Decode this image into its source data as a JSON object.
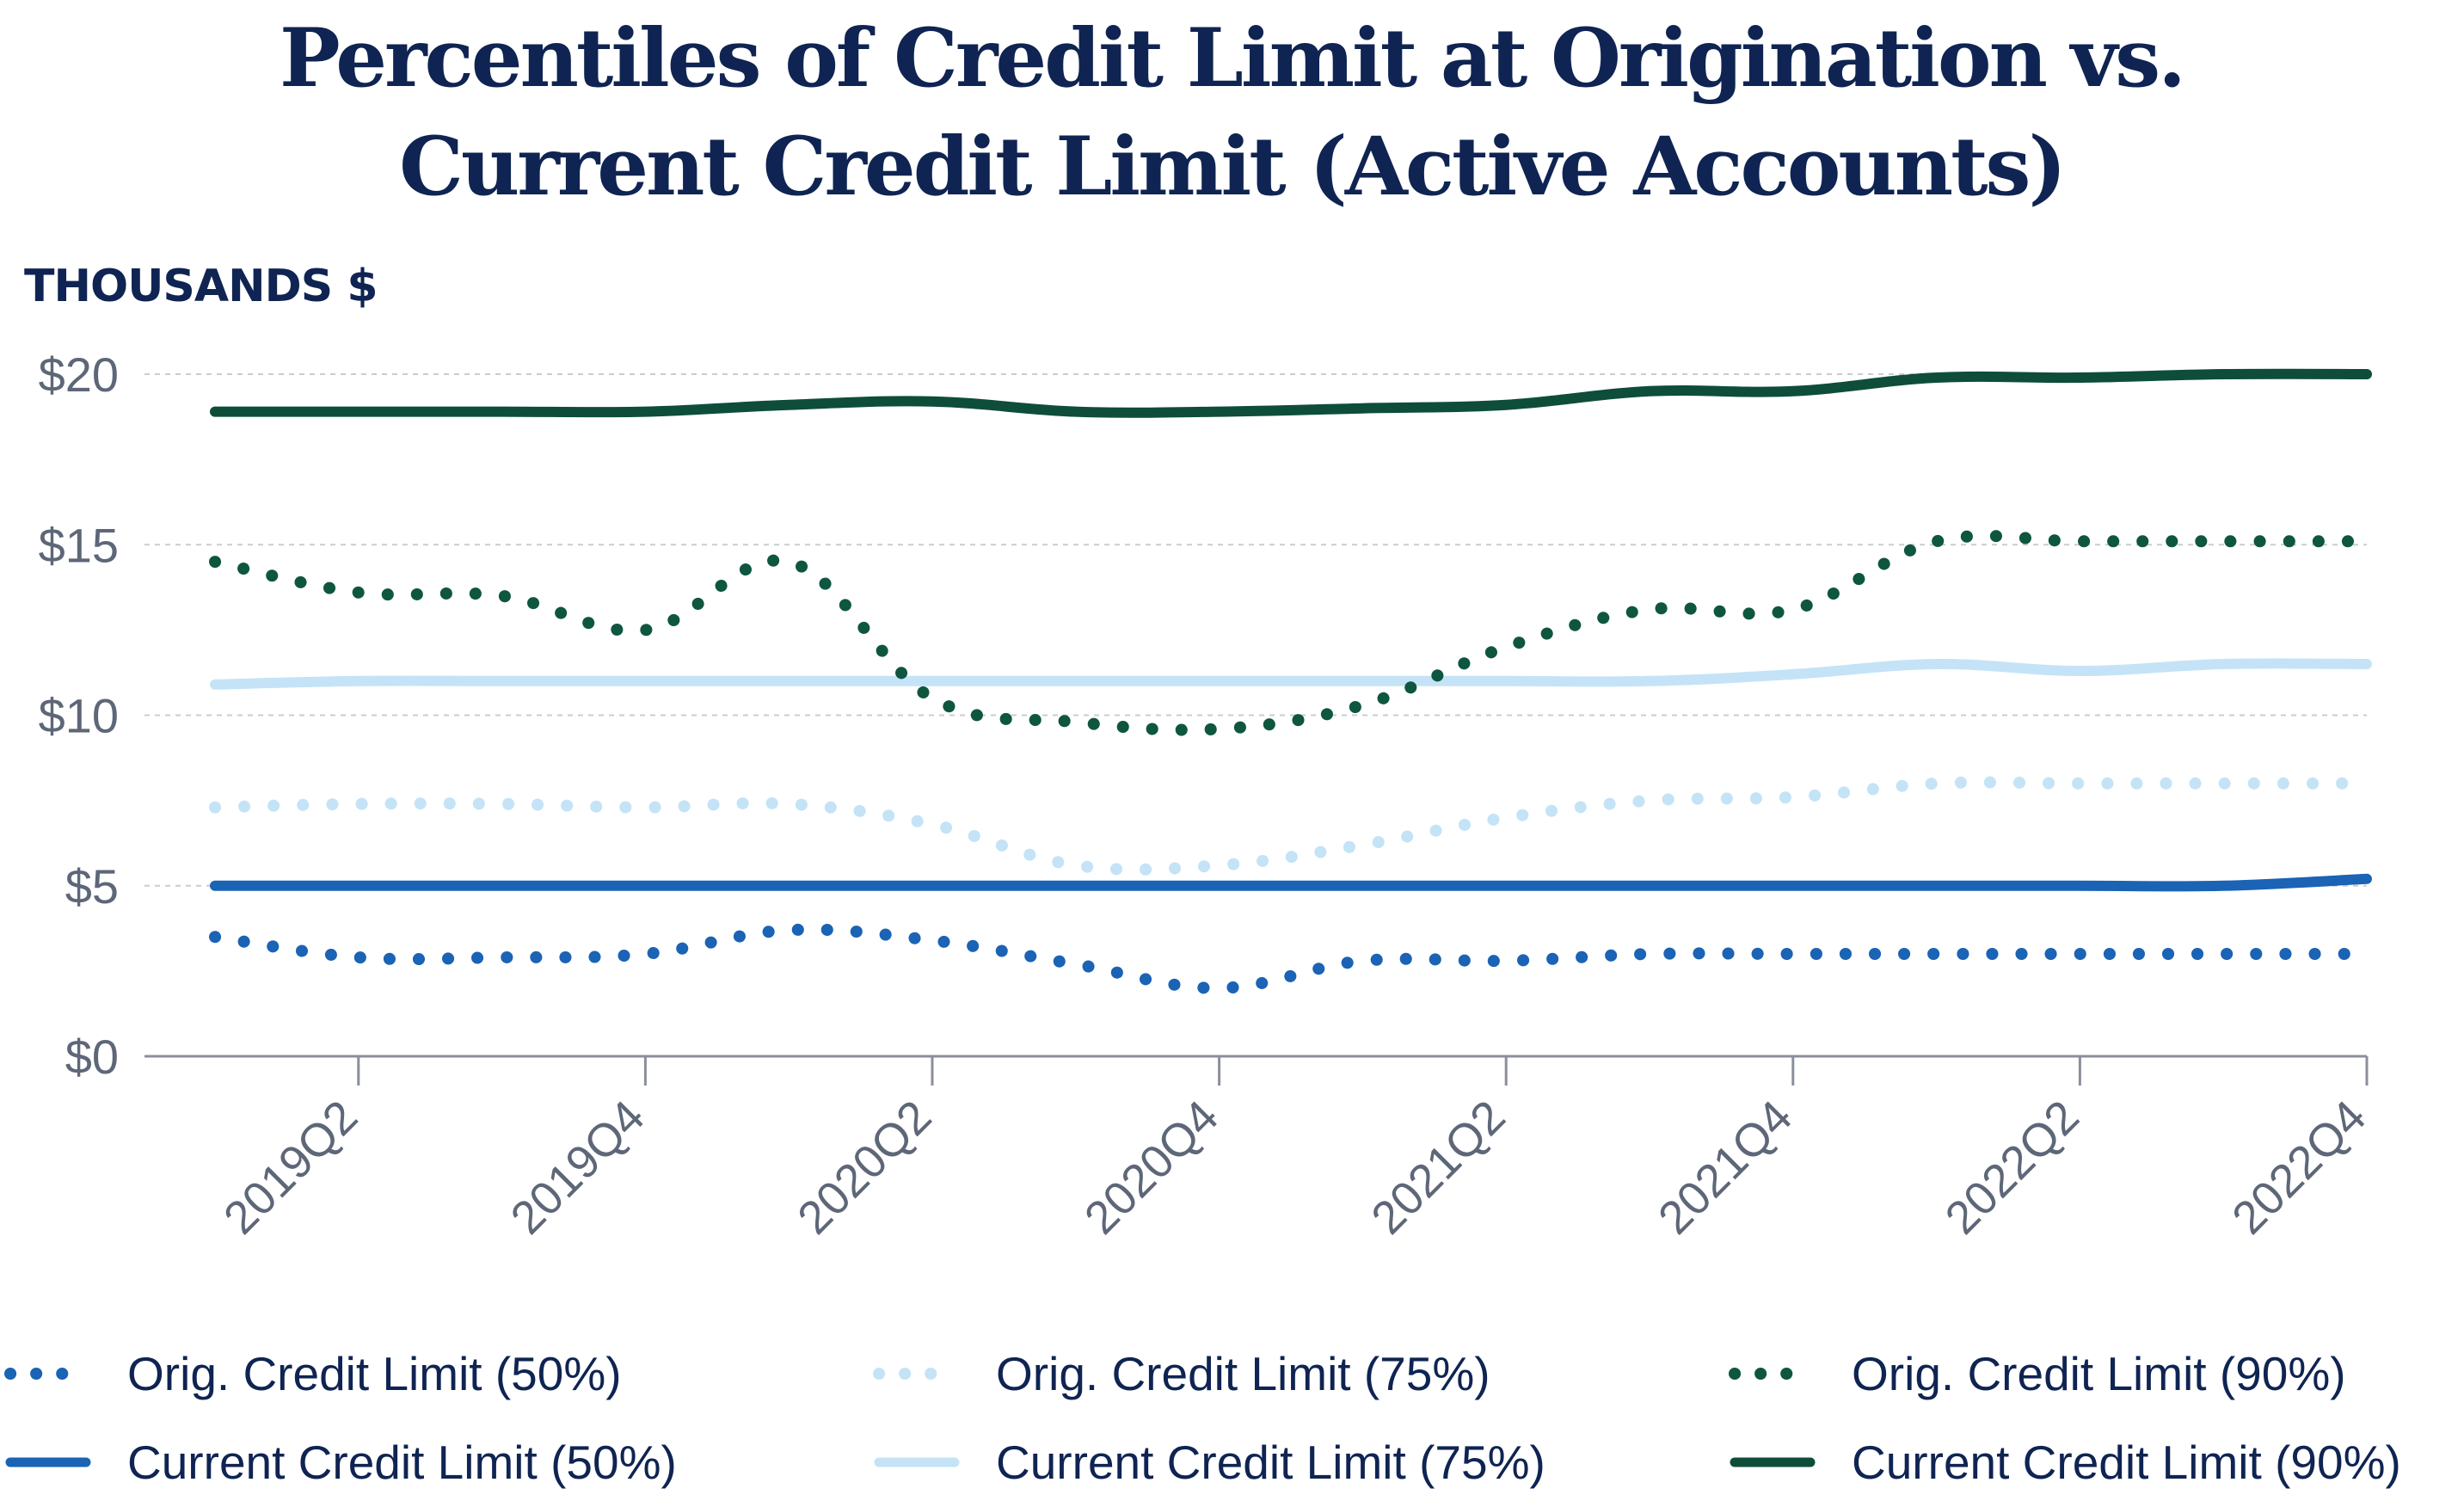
{
  "title_line1": "Percentiles of Credit Limit at Origination vs.",
  "title_line2": "Current Credit Limit (Active Accounts)",
  "unit_label": "THOUSANDS $",
  "chart_data": {
    "type": "line",
    "title": "Percentiles of Credit Limit at Origination vs. Current Credit Limit (Active Accounts)",
    "ylabel": "THOUSANDS $",
    "xlabel": "",
    "ylim": [
      0,
      20
    ],
    "yticks": [
      0,
      5,
      10,
      15,
      20
    ],
    "ytick_labels": [
      "$0",
      "$5",
      "$10",
      "$15",
      "$20"
    ],
    "grid": "horizontal dashed",
    "legend_position": "bottom",
    "x": [
      "2019Q1",
      "2019Q2",
      "2019Q3",
      "2019Q4",
      "2020Q1",
      "2020Q2",
      "2020Q3",
      "2020Q4",
      "2021Q1",
      "2021Q2",
      "2021Q3",
      "2021Q4",
      "2022Q1",
      "2022Q2",
      "2022Q3",
      "2022Q4"
    ],
    "xtick_labels": [
      "2019Q2",
      "2019Q4",
      "2020Q2",
      "2020Q4",
      "2021Q2",
      "2021Q4",
      "2022Q2",
      "2022Q4"
    ],
    "series": [
      {
        "name": "Orig. Credit Limit (50%)",
        "style": "dotted",
        "color": "#1a63b5",
        "values": [
          3.5,
          2.9,
          2.9,
          3.0,
          3.7,
          3.4,
          2.7,
          2.0,
          2.8,
          2.8,
          3.0,
          3.0,
          3.0,
          3.0,
          3.0,
          3.0
        ]
      },
      {
        "name": "Orig. Credit Limit (75%)",
        "style": "dotted",
        "color": "#c5e3f7",
        "values": [
          7.3,
          7.4,
          7.4,
          7.3,
          7.4,
          6.8,
          5.6,
          5.6,
          6.2,
          7.0,
          7.5,
          7.6,
          8.0,
          8.0,
          8.0,
          8.0
        ]
      },
      {
        "name": "Orig. Credit Limit (90%)",
        "style": "dotted",
        "color": "#0e5640",
        "values": [
          14.5,
          13.6,
          13.5,
          12.5,
          14.5,
          10.5,
          9.8,
          9.6,
          10.3,
          12.0,
          13.1,
          13.1,
          15.1,
          15.1,
          15.1,
          15.1
        ]
      },
      {
        "name": "Current Credit Limit (50%)",
        "style": "solid",
        "color": "#1a63b5",
        "values": [
          5.0,
          5.0,
          5.0,
          5.0,
          5.0,
          5.0,
          5.0,
          5.0,
          5.0,
          5.0,
          5.0,
          5.0,
          5.0,
          5.0,
          5.0,
          5.2
        ]
      },
      {
        "name": "Current Credit Limit (75%)",
        "style": "solid",
        "color": "#c5e3f7",
        "values": [
          10.9,
          11.0,
          11.0,
          11.0,
          11.0,
          11.0,
          11.0,
          11.0,
          11.0,
          11.0,
          11.0,
          11.2,
          11.5,
          11.3,
          11.5,
          11.5
        ]
      },
      {
        "name": "Current Credit Limit (90%)",
        "style": "solid",
        "color": "#0e4d3a",
        "values": [
          18.9,
          18.9,
          18.9,
          18.9,
          19.1,
          19.2,
          18.9,
          18.9,
          19.0,
          19.1,
          19.5,
          19.5,
          19.9,
          19.9,
          20.0,
          20.0
        ]
      }
    ]
  },
  "legend": [
    {
      "label": "Orig. Credit Limit (50%)",
      "style": "dotted",
      "color": "#1a63b5"
    },
    {
      "label": "Orig. Credit Limit (75%)",
      "style": "dotted",
      "color": "#c5e3f7"
    },
    {
      "label": "Orig. Credit Limit (90%)",
      "style": "dotted",
      "color": "#0e5640"
    },
    {
      "label": "Current Credit Limit (50%)",
      "style": "solid",
      "color": "#1a63b5"
    },
    {
      "label": "Current Credit Limit (75%)",
      "style": "solid",
      "color": "#c5e3f7"
    },
    {
      "label": "Current Credit Limit (90%)",
      "style": "solid",
      "color": "#0e4d3a"
    }
  ]
}
